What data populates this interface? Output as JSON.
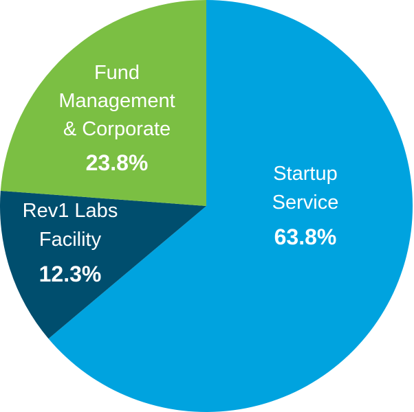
{
  "chart_data": {
    "type": "pie",
    "start_angle_deg": -90,
    "direction": "clockwise",
    "slices": [
      {
        "label_lines": [
          "Startup",
          "Service"
        ],
        "value": 63.8,
        "value_label": "63.8%",
        "color": "#00A3DF"
      },
      {
        "label_lines": [
          "Rev1 Labs",
          "Facility"
        ],
        "value": 12.3,
        "value_label": "12.3%",
        "color": "#004E6E"
      },
      {
        "label_lines": [
          "Fund",
          "Management",
          "& Corporate"
        ],
        "value": 23.8,
        "value_label": "23.8%",
        "color": "#7BBF43"
      }
    ]
  }
}
